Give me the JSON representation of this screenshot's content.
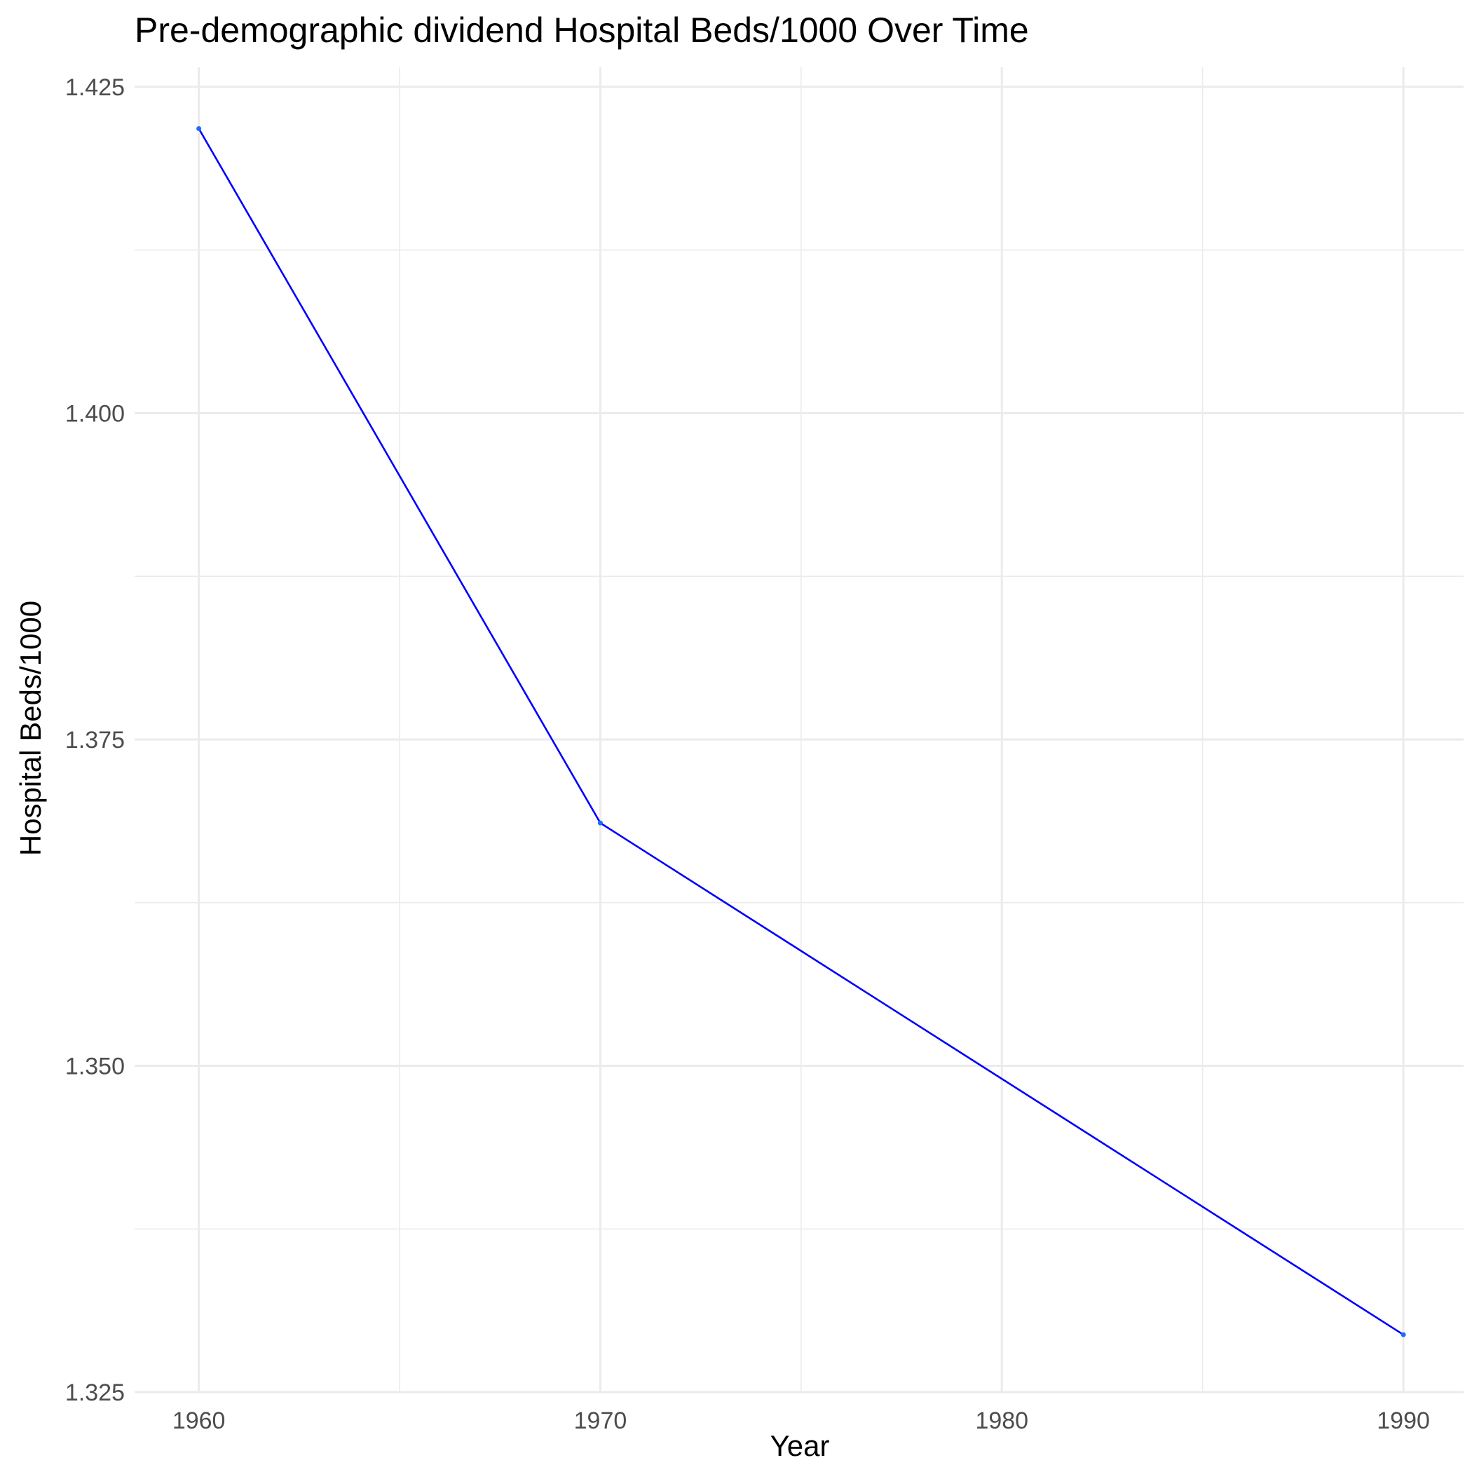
{
  "chart_data": {
    "type": "line",
    "title": "Pre-demographic dividend Hospital Beds/1000 Over Time",
    "xlabel": "Year",
    "ylabel": "Hospital Beds/1000",
    "x": [
      1960,
      1970,
      1990
    ],
    "series": [
      {
        "values": [
          1.4218,
          1.3686,
          1.3294
        ]
      }
    ],
    "xlim": [
      1958.4,
      1991.5
    ],
    "ylim": [
      1.325,
      1.4265
    ],
    "x_ticks": [
      "1960",
      "1970",
      "1980",
      "1990"
    ],
    "y_ticks": [
      "1.325",
      "1.350",
      "1.375",
      "1.400",
      "1.425"
    ],
    "grid": true,
    "line_color": "#0000ff",
    "point_color": "#1e6cff"
  }
}
